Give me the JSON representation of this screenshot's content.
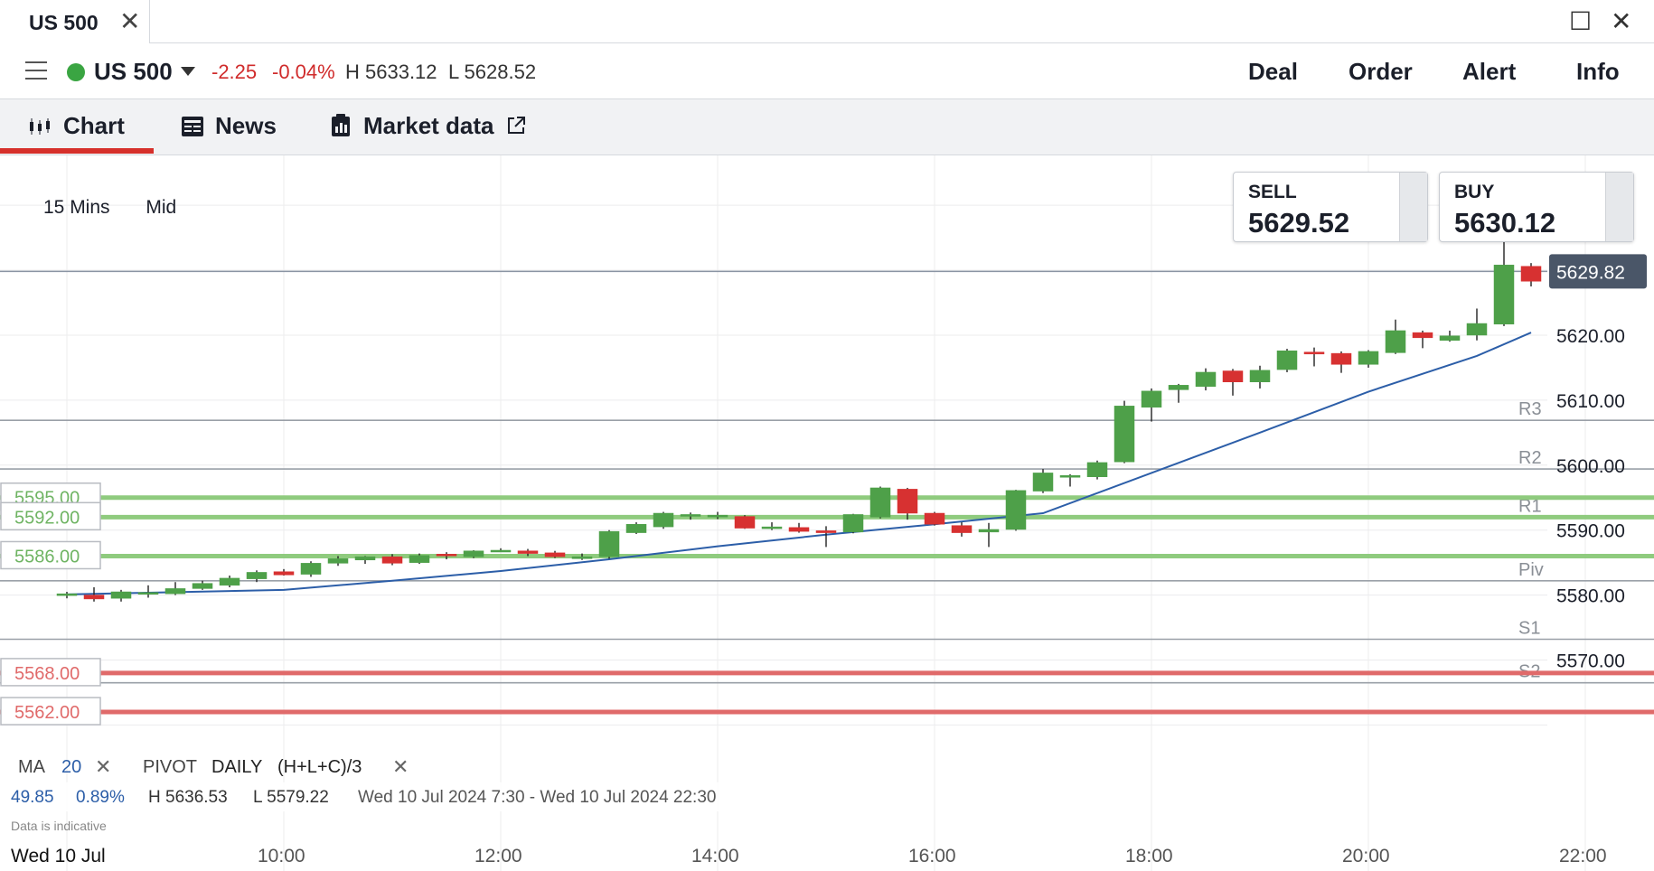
{
  "window": {
    "tab_title": "US 500",
    "close_glyph": "✕",
    "maximize_glyph": "☐",
    "window_close_glyph": "✕"
  },
  "toolbar": {
    "instrument": "US 500",
    "change": "-2.25",
    "change_pct": "-0.04%",
    "high": "H 5633.12",
    "low": "L 5628.52",
    "actions": [
      "Deal",
      "Order",
      "Alert",
      "Info"
    ]
  },
  "nav": {
    "chart": "Chart",
    "news": "News",
    "market_data": "Market data"
  },
  "chart_controls": {
    "timeframe": "15 Mins",
    "price_type": "Mid"
  },
  "quotes": {
    "sell_label": "SELL",
    "sell_price": "5629.52",
    "buy_label": "BUY",
    "buy_price": "5630.12"
  },
  "footer": {
    "date": "Wed 10 Jul",
    "disclaimer": "Data is indicative"
  },
  "indicators": {
    "ma_label": "MA",
    "ma_period": "20",
    "pivot_label": "PIVOT",
    "pivot_period": "DAILY",
    "pivot_formula": "(H+L+C)/3",
    "stats_change": "49.85",
    "stats_pct": "0.89%",
    "stats_high": "H 5636.53",
    "stats_low": "L 5579.22",
    "stats_range": "Wed 10 Jul 2024 7:30 - Wed 10 Jul 2024 22:30"
  },
  "colors": {
    "up": "#4ea049",
    "down": "#d73131",
    "ma": "#2c5ea8",
    "accent": "#d6302b",
    "alert_line": "#8fcb7e",
    "sell_line": "#e06a6a"
  },
  "chart_data": {
    "type": "candlestick",
    "ylim": [
      5557,
      5646
    ],
    "xlim": [
      "08:00",
      "22:30"
    ],
    "x_tick_labels": [
      "10:00",
      "12:00",
      "14:00",
      "16:00",
      "18:00",
      "20:00",
      "22:00"
    ],
    "y_tick_labels": [
      "5620.00",
      "5610.00",
      "5600.00",
      "5590.00",
      "5580.00",
      "5570.00"
    ],
    "current_price_label": "5629.82",
    "current_price": 5629.82,
    "pivots": [
      {
        "name": "R3",
        "value": 5606.9
      },
      {
        "name": "R2",
        "value": 5599.4
      },
      {
        "name": "R1",
        "value": 5592.0
      },
      {
        "name": "Piv",
        "value": 5582.2
      },
      {
        "name": "S1",
        "value": 5573.2
      },
      {
        "name": "S2",
        "value": 5566.5
      }
    ],
    "alert_lines": [
      {
        "label": "5595.00",
        "value": 5595.0
      },
      {
        "label": "5592.00",
        "value": 5592.0
      },
      {
        "label": "5586.00",
        "value": 5586.0
      }
    ],
    "sell_lines": [
      {
        "label": "5568.00",
        "value": 5568.0
      },
      {
        "label": "5562.00",
        "value": 5562.0
      }
    ],
    "candles": [
      {
        "t": "08:00",
        "o": 5580.0,
        "h": 5580.5,
        "l": 5579.5,
        "c": 5580.2
      },
      {
        "t": "08:15",
        "o": 5580.0,
        "h": 5581.2,
        "l": 5579.0,
        "c": 5579.4
      },
      {
        "t": "08:30",
        "o": 5579.5,
        "h": 5580.8,
        "l": 5579.0,
        "c": 5580.5
      },
      {
        "t": "08:45",
        "o": 5580.2,
        "h": 5581.5,
        "l": 5579.6,
        "c": 5580.4
      },
      {
        "t": "09:00",
        "o": 5580.2,
        "h": 5582.0,
        "l": 5580.0,
        "c": 5581.0
      },
      {
        "t": "09:15",
        "o": 5581.0,
        "h": 5582.2,
        "l": 5580.8,
        "c": 5581.8
      },
      {
        "t": "09:30",
        "o": 5581.5,
        "h": 5583.0,
        "l": 5581.2,
        "c": 5582.6
      },
      {
        "t": "09:45",
        "o": 5582.5,
        "h": 5583.8,
        "l": 5582.0,
        "c": 5583.5
      },
      {
        "t": "10:00",
        "o": 5583.6,
        "h": 5584.0,
        "l": 5583.0,
        "c": 5583.1
      },
      {
        "t": "10:15",
        "o": 5583.2,
        "h": 5585.2,
        "l": 5582.8,
        "c": 5584.9
      },
      {
        "t": "10:30",
        "o": 5584.9,
        "h": 5586.0,
        "l": 5584.5,
        "c": 5585.6
      },
      {
        "t": "10:45",
        "o": 5585.4,
        "h": 5586.0,
        "l": 5584.8,
        "c": 5585.9
      },
      {
        "t": "11:00",
        "o": 5585.9,
        "h": 5586.3,
        "l": 5584.6,
        "c": 5584.9
      },
      {
        "t": "11:15",
        "o": 5585.0,
        "h": 5586.4,
        "l": 5584.8,
        "c": 5586.1
      },
      {
        "t": "11:30",
        "o": 5586.3,
        "h": 5586.6,
        "l": 5585.5,
        "c": 5586.1
      },
      {
        "t": "11:45",
        "o": 5585.9,
        "h": 5586.9,
        "l": 5585.7,
        "c": 5586.8
      },
      {
        "t": "12:00",
        "o": 5586.9,
        "h": 5587.2,
        "l": 5586.8,
        "c": 5586.9
      },
      {
        "t": "12:15",
        "o": 5586.8,
        "h": 5587.1,
        "l": 5586.0,
        "c": 5586.4
      },
      {
        "t": "12:30",
        "o": 5586.5,
        "h": 5586.8,
        "l": 5585.7,
        "c": 5585.9
      },
      {
        "t": "12:45",
        "o": 5585.6,
        "h": 5586.4,
        "l": 5585.4,
        "c": 5585.9
      },
      {
        "t": "13:00",
        "o": 5585.9,
        "h": 5590.0,
        "l": 5585.6,
        "c": 5589.8
      },
      {
        "t": "13:15",
        "o": 5589.6,
        "h": 5591.2,
        "l": 5589.4,
        "c": 5590.9
      },
      {
        "t": "13:30",
        "o": 5590.5,
        "h": 5592.8,
        "l": 5590.2,
        "c": 5592.6
      },
      {
        "t": "13:45",
        "o": 5592.3,
        "h": 5592.7,
        "l": 5591.6,
        "c": 5592.4
      },
      {
        "t": "14:00",
        "o": 5592.2,
        "h": 5592.8,
        "l": 5591.7,
        "c": 5592.3
      },
      {
        "t": "14:15",
        "o": 5592.1,
        "h": 5592.3,
        "l": 5590.2,
        "c": 5590.3
      },
      {
        "t": "14:30",
        "o": 5590.4,
        "h": 5591.2,
        "l": 5590.0,
        "c": 5590.5
      },
      {
        "t": "14:45",
        "o": 5590.4,
        "h": 5591.1,
        "l": 5589.6,
        "c": 5589.8
      },
      {
        "t": "15:00",
        "o": 5589.9,
        "h": 5590.6,
        "l": 5587.4,
        "c": 5589.6
      },
      {
        "t": "15:15",
        "o": 5589.7,
        "h": 5592.5,
        "l": 5589.5,
        "c": 5592.4
      },
      {
        "t": "15:30",
        "o": 5592.0,
        "h": 5596.7,
        "l": 5591.8,
        "c": 5596.5
      },
      {
        "t": "15:45",
        "o": 5596.3,
        "h": 5596.5,
        "l": 5591.6,
        "c": 5592.6
      },
      {
        "t": "16:00",
        "o": 5592.6,
        "h": 5592.8,
        "l": 5590.7,
        "c": 5590.9
      },
      {
        "t": "16:15",
        "o": 5590.7,
        "h": 5591.2,
        "l": 5589.0,
        "c": 5589.6
      },
      {
        "t": "16:30",
        "o": 5589.7,
        "h": 5591.1,
        "l": 5587.4,
        "c": 5590.1
      },
      {
        "t": "16:45",
        "o": 5590.1,
        "h": 5596.2,
        "l": 5589.9,
        "c": 5596.1
      },
      {
        "t": "17:00",
        "o": 5596.0,
        "h": 5599.4,
        "l": 5595.7,
        "c": 5598.8
      },
      {
        "t": "17:15",
        "o": 5598.4,
        "h": 5598.6,
        "l": 5596.7,
        "c": 5598.4
      },
      {
        "t": "17:30",
        "o": 5598.2,
        "h": 5600.7,
        "l": 5597.8,
        "c": 5600.4
      },
      {
        "t": "17:45",
        "o": 5600.5,
        "h": 5609.9,
        "l": 5600.3,
        "c": 5609.1
      },
      {
        "t": "18:00",
        "o": 5608.9,
        "h": 5611.8,
        "l": 5606.7,
        "c": 5611.4
      },
      {
        "t": "18:15",
        "o": 5611.6,
        "h": 5612.5,
        "l": 5609.6,
        "c": 5612.3
      },
      {
        "t": "18:30",
        "o": 5612.1,
        "h": 5614.9,
        "l": 5611.5,
        "c": 5614.3
      },
      {
        "t": "18:45",
        "o": 5614.5,
        "h": 5614.8,
        "l": 5610.7,
        "c": 5612.8
      },
      {
        "t": "19:00",
        "o": 5612.8,
        "h": 5615.3,
        "l": 5611.8,
        "c": 5614.6
      },
      {
        "t": "19:15",
        "o": 5614.7,
        "h": 5617.9,
        "l": 5614.3,
        "c": 5617.6
      },
      {
        "t": "19:30",
        "o": 5617.4,
        "h": 5618.1,
        "l": 5615.2,
        "c": 5617.1
      },
      {
        "t": "19:45",
        "o": 5617.2,
        "h": 5617.5,
        "l": 5614.2,
        "c": 5615.5
      },
      {
        "t": "20:00",
        "o": 5615.5,
        "h": 5617.7,
        "l": 5615.0,
        "c": 5617.5
      },
      {
        "t": "20:15",
        "o": 5617.3,
        "h": 5622.4,
        "l": 5617.1,
        "c": 5620.7
      },
      {
        "t": "20:30",
        "o": 5620.4,
        "h": 5620.7,
        "l": 5618.0,
        "c": 5619.6
      },
      {
        "t": "20:45",
        "o": 5619.2,
        "h": 5620.7,
        "l": 5619.0,
        "c": 5619.9
      },
      {
        "t": "21:00",
        "o": 5620.0,
        "h": 5624.1,
        "l": 5619.2,
        "c": 5621.8
      },
      {
        "t": "21:15",
        "o": 5621.7,
        "h": 5634.7,
        "l": 5621.4,
        "c": 5630.8
      },
      {
        "t": "21:30",
        "o": 5630.6,
        "h": 5631.1,
        "l": 5627.5,
        "c": 5628.3
      }
    ],
    "ma20": [
      {
        "t": "08:00",
        "v": 5580.1
      },
      {
        "t": "10:00",
        "v": 5580.8
      },
      {
        "t": "11:00",
        "v": 5582.2
      },
      {
        "t": "12:00",
        "v": 5583.7
      },
      {
        "t": "13:00",
        "v": 5585.5
      },
      {
        "t": "14:00",
        "v": 5587.5
      },
      {
        "t": "15:00",
        "v": 5589.3
      },
      {
        "t": "16:00",
        "v": 5590.9
      },
      {
        "t": "17:00",
        "v": 5592.6
      },
      {
        "t": "18:00",
        "v": 5598.8
      },
      {
        "t": "19:00",
        "v": 5605.0
      },
      {
        "t": "20:00",
        "v": 5611.3
      },
      {
        "t": "21:00",
        "v": 5616.8
      },
      {
        "t": "21:30",
        "v": 5620.4
      }
    ]
  }
}
